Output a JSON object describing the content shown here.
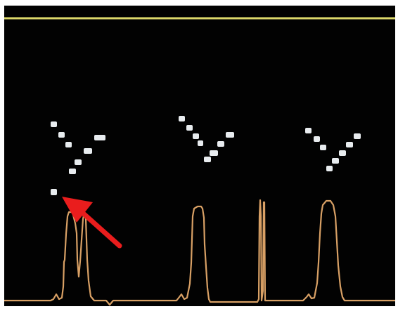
{
  "display": {
    "background_color": "#020202",
    "frame_color": "#ffffff",
    "baseline_color": "#dcd86a",
    "waveform_color": "#d8a065",
    "marker_color": "#e8ecef",
    "arrow_color": "#ea1d1d"
  },
  "annotation": {
    "icon": "red-arrow-icon"
  }
}
